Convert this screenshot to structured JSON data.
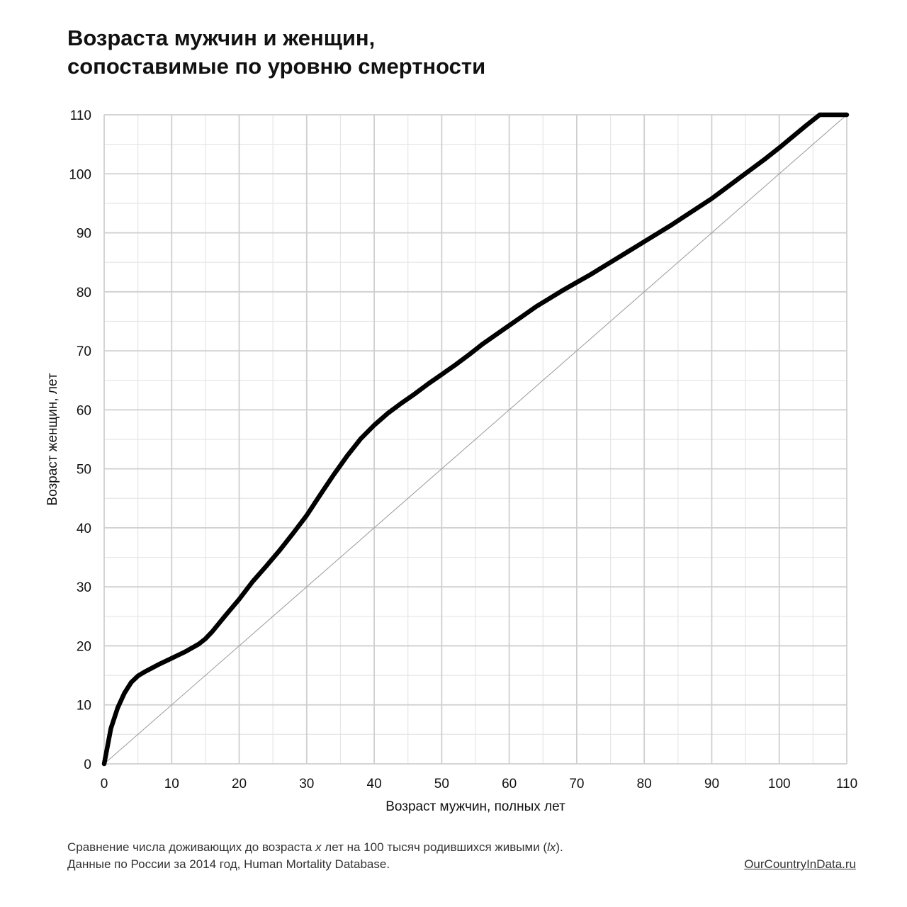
{
  "title": {
    "line1": "Возраста мужчин и женщин,",
    "line2": "сопоставимые по уровню смертности"
  },
  "chart_data": {
    "type": "line",
    "xlabel": "Возраст мужчин, полных лет",
    "ylabel": "Возраст женщин, лет",
    "xlim": [
      0,
      110
    ],
    "ylim": [
      0,
      110
    ],
    "x_ticks": [
      0,
      10,
      20,
      30,
      40,
      50,
      60,
      70,
      80,
      90,
      100,
      110
    ],
    "y_ticks": [
      0,
      10,
      20,
      30,
      40,
      50,
      60,
      70,
      80,
      90,
      100,
      110
    ],
    "minor_grid_step": 5,
    "grid": true,
    "series": [
      {
        "color": "#000000",
        "x": [
          0,
          1,
          2,
          3,
          4,
          5,
          6,
          8,
          10,
          12,
          14,
          15,
          16,
          18,
          20,
          22,
          24,
          26,
          28,
          30,
          32,
          34,
          36,
          38,
          40,
          42,
          44,
          46,
          48,
          50,
          52,
          54,
          56,
          58,
          60,
          62,
          64,
          66,
          68,
          70,
          72,
          74,
          76,
          78,
          80,
          82,
          84,
          86,
          88,
          90,
          92,
          94,
          96,
          98,
          100,
          102,
          104,
          106,
          107,
          108,
          109,
          110
        ],
        "y": [
          0,
          6,
          9.5,
          12,
          13.8,
          14.9,
          15.6,
          16.8,
          17.9,
          19,
          20.3,
          21.2,
          22.4,
          25.2,
          27.9,
          30.9,
          33.5,
          36.2,
          39.1,
          42.1,
          45.6,
          49,
          52.2,
          55.1,
          57.4,
          59.4,
          61.1,
          62.7,
          64.4,
          66,
          67.6,
          69.3,
          71.1,
          72.7,
          74.3,
          75.9,
          77.5,
          78.9,
          80.3,
          81.6,
          82.9,
          84.3,
          85.7,
          87.1,
          88.5,
          89.9,
          91.3,
          92.8,
          94.3,
          95.8,
          97.5,
          99.2,
          100.9,
          102.6,
          104.4,
          106.3,
          108.2,
          110,
          110.5,
          111.2,
          111.7,
          112
        ]
      },
      {
        "color": "#9a9a9a",
        "x": [
          0,
          110
        ],
        "y": [
          0,
          110
        ]
      }
    ]
  },
  "footer": {
    "line1_a": "Сравнение числа доживающих до возраста ",
    "line1_x": "x",
    "line1_b": " лет на 100 тысяч родившихся живыми (",
    "line1_lx": "lx",
    "line1_c": ").",
    "line2": "Данные по России за 2014 год, Human Mortality Database.",
    "source": "OurCountryInData.ru"
  }
}
